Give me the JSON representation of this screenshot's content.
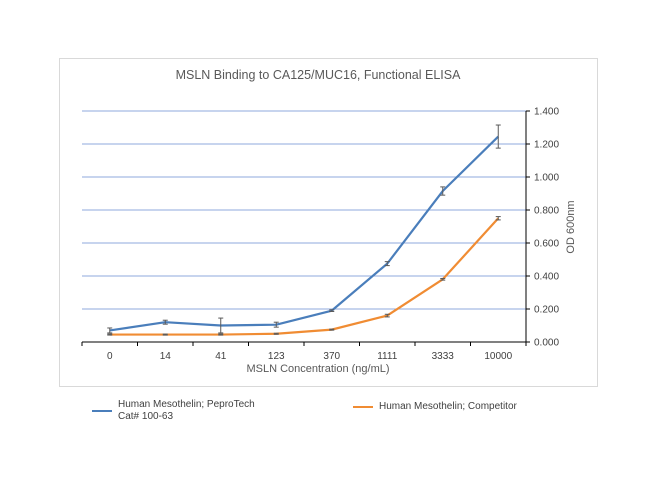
{
  "chart_data": {
    "type": "line",
    "title": "MSLN Binding to CA125/MUC16, Functional ELISA",
    "xlabel": "MSLN Concentration (ng/mL)",
    "ylabel": "OD 600nm",
    "categories": [
      "0",
      "14",
      "41",
      "123",
      "370",
      "1111",
      "3333",
      "10000"
    ],
    "ylim": [
      0,
      1.4
    ],
    "yticks": [
      "0.000",
      "0.200",
      "0.400",
      "0.600",
      "0.800",
      "1.000",
      "1.200",
      "1.400"
    ],
    "ytick_values": [
      0,
      0.2,
      0.4,
      0.6,
      0.8,
      1.0,
      1.2,
      1.4
    ],
    "grid": true,
    "y_axis_side": "right",
    "series": [
      {
        "name": "Human Mesothelin; PeproTech Cat# 100-63",
        "legend_line1": "Human Mesothelin; PeproTech",
        "legend_line2": "Cat# 100-63",
        "color": "#4a7ebb",
        "values": [
          0.07,
          0.12,
          0.1,
          0.105,
          0.19,
          0.475,
          0.915,
          1.245
        ],
        "errors": [
          0.015,
          0.012,
          0.045,
          0.015,
          0.005,
          0.012,
          0.025,
          0.07
        ]
      },
      {
        "name": "Human Mesothelin; Competitor",
        "legend_line1": "Human Mesothelin; Competitor",
        "color": "#f08c33",
        "values": [
          0.045,
          0.045,
          0.045,
          0.05,
          0.075,
          0.16,
          0.38,
          0.75
        ],
        "errors": [
          0.003,
          0.003,
          0.003,
          0.003,
          0.003,
          0.008,
          0.005,
          0.01
        ]
      }
    ]
  }
}
